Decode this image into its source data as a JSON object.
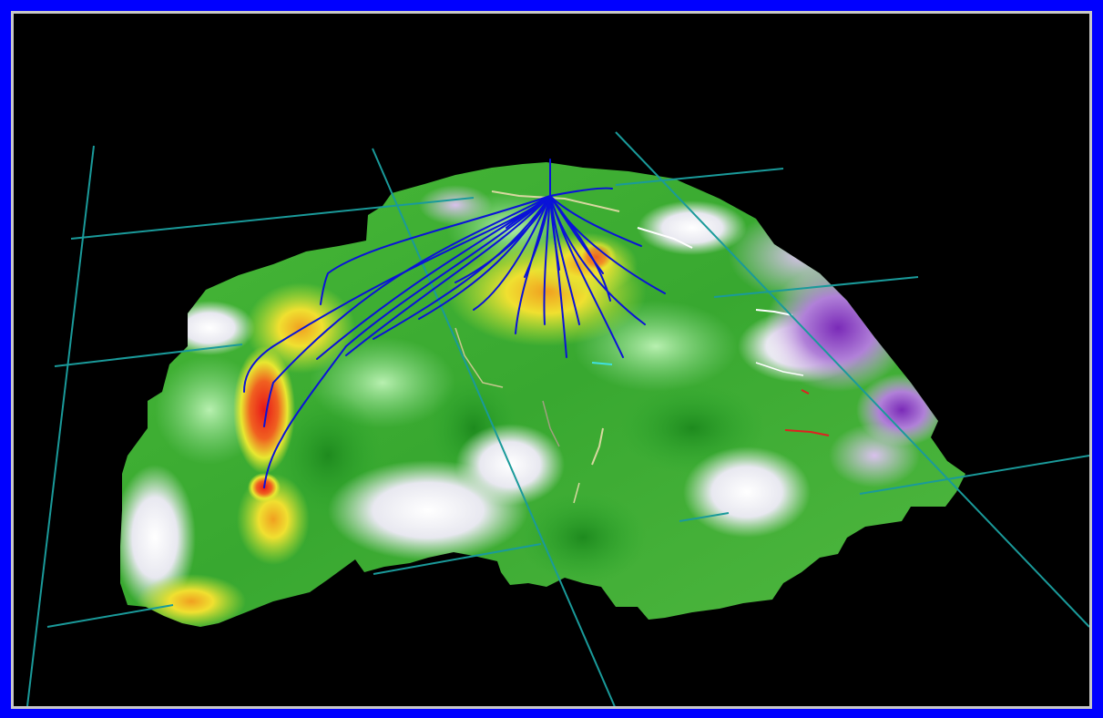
{
  "scene": {
    "background_color": "#000000",
    "frame_color": "#0000ff",
    "frame_border_color": "#c8c8c8",
    "grid_line_color": "#1a9a9a",
    "well_path_color": "#0a12d8",
    "surface_colormap": [
      "#7a2ab8",
      "#c8a0e0",
      "#ffffff",
      "#9ae09a",
      "#2ea82e",
      "#58c028",
      "#e8f030",
      "#f0a020",
      "#e81818"
    ],
    "fault_colors": [
      "#d8d8a0",
      "#e02020"
    ]
  }
}
